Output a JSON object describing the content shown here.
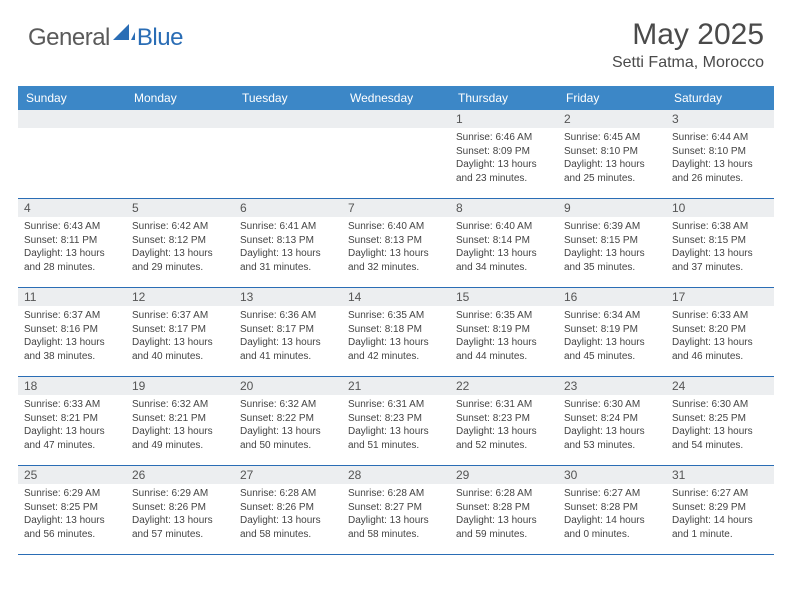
{
  "brand": {
    "part1": "General",
    "part2": "Blue"
  },
  "title": "May 2025",
  "location": "Setti Fatma, Morocco",
  "colors": {
    "header_bg": "#3c87c7",
    "week_border": "#2a6db5",
    "daynum_bg": "#eceef0",
    "brand_gray": "#5a5a5a",
    "brand_blue": "#2a6db5",
    "text": "#444444",
    "page_bg": "#ffffff"
  },
  "day_labels": [
    "Sunday",
    "Monday",
    "Tuesday",
    "Wednesday",
    "Thursday",
    "Friday",
    "Saturday"
  ],
  "weeks": [
    [
      {
        "n": "",
        "sunrise": "",
        "sunset": "",
        "daylight": ""
      },
      {
        "n": "",
        "sunrise": "",
        "sunset": "",
        "daylight": ""
      },
      {
        "n": "",
        "sunrise": "",
        "sunset": "",
        "daylight": ""
      },
      {
        "n": "",
        "sunrise": "",
        "sunset": "",
        "daylight": ""
      },
      {
        "n": "1",
        "sunrise": "Sunrise: 6:46 AM",
        "sunset": "Sunset: 8:09 PM",
        "daylight": "Daylight: 13 hours and 23 minutes."
      },
      {
        "n": "2",
        "sunrise": "Sunrise: 6:45 AM",
        "sunset": "Sunset: 8:10 PM",
        "daylight": "Daylight: 13 hours and 25 minutes."
      },
      {
        "n": "3",
        "sunrise": "Sunrise: 6:44 AM",
        "sunset": "Sunset: 8:10 PM",
        "daylight": "Daylight: 13 hours and 26 minutes."
      }
    ],
    [
      {
        "n": "4",
        "sunrise": "Sunrise: 6:43 AM",
        "sunset": "Sunset: 8:11 PM",
        "daylight": "Daylight: 13 hours and 28 minutes."
      },
      {
        "n": "5",
        "sunrise": "Sunrise: 6:42 AM",
        "sunset": "Sunset: 8:12 PM",
        "daylight": "Daylight: 13 hours and 29 minutes."
      },
      {
        "n": "6",
        "sunrise": "Sunrise: 6:41 AM",
        "sunset": "Sunset: 8:13 PM",
        "daylight": "Daylight: 13 hours and 31 minutes."
      },
      {
        "n": "7",
        "sunrise": "Sunrise: 6:40 AM",
        "sunset": "Sunset: 8:13 PM",
        "daylight": "Daylight: 13 hours and 32 minutes."
      },
      {
        "n": "8",
        "sunrise": "Sunrise: 6:40 AM",
        "sunset": "Sunset: 8:14 PM",
        "daylight": "Daylight: 13 hours and 34 minutes."
      },
      {
        "n": "9",
        "sunrise": "Sunrise: 6:39 AM",
        "sunset": "Sunset: 8:15 PM",
        "daylight": "Daylight: 13 hours and 35 minutes."
      },
      {
        "n": "10",
        "sunrise": "Sunrise: 6:38 AM",
        "sunset": "Sunset: 8:15 PM",
        "daylight": "Daylight: 13 hours and 37 minutes."
      }
    ],
    [
      {
        "n": "11",
        "sunrise": "Sunrise: 6:37 AM",
        "sunset": "Sunset: 8:16 PM",
        "daylight": "Daylight: 13 hours and 38 minutes."
      },
      {
        "n": "12",
        "sunrise": "Sunrise: 6:37 AM",
        "sunset": "Sunset: 8:17 PM",
        "daylight": "Daylight: 13 hours and 40 minutes."
      },
      {
        "n": "13",
        "sunrise": "Sunrise: 6:36 AM",
        "sunset": "Sunset: 8:17 PM",
        "daylight": "Daylight: 13 hours and 41 minutes."
      },
      {
        "n": "14",
        "sunrise": "Sunrise: 6:35 AM",
        "sunset": "Sunset: 8:18 PM",
        "daylight": "Daylight: 13 hours and 42 minutes."
      },
      {
        "n": "15",
        "sunrise": "Sunrise: 6:35 AM",
        "sunset": "Sunset: 8:19 PM",
        "daylight": "Daylight: 13 hours and 44 minutes."
      },
      {
        "n": "16",
        "sunrise": "Sunrise: 6:34 AM",
        "sunset": "Sunset: 8:19 PM",
        "daylight": "Daylight: 13 hours and 45 minutes."
      },
      {
        "n": "17",
        "sunrise": "Sunrise: 6:33 AM",
        "sunset": "Sunset: 8:20 PM",
        "daylight": "Daylight: 13 hours and 46 minutes."
      }
    ],
    [
      {
        "n": "18",
        "sunrise": "Sunrise: 6:33 AM",
        "sunset": "Sunset: 8:21 PM",
        "daylight": "Daylight: 13 hours and 47 minutes."
      },
      {
        "n": "19",
        "sunrise": "Sunrise: 6:32 AM",
        "sunset": "Sunset: 8:21 PM",
        "daylight": "Daylight: 13 hours and 49 minutes."
      },
      {
        "n": "20",
        "sunrise": "Sunrise: 6:32 AM",
        "sunset": "Sunset: 8:22 PM",
        "daylight": "Daylight: 13 hours and 50 minutes."
      },
      {
        "n": "21",
        "sunrise": "Sunrise: 6:31 AM",
        "sunset": "Sunset: 8:23 PM",
        "daylight": "Daylight: 13 hours and 51 minutes."
      },
      {
        "n": "22",
        "sunrise": "Sunrise: 6:31 AM",
        "sunset": "Sunset: 8:23 PM",
        "daylight": "Daylight: 13 hours and 52 minutes."
      },
      {
        "n": "23",
        "sunrise": "Sunrise: 6:30 AM",
        "sunset": "Sunset: 8:24 PM",
        "daylight": "Daylight: 13 hours and 53 minutes."
      },
      {
        "n": "24",
        "sunrise": "Sunrise: 6:30 AM",
        "sunset": "Sunset: 8:25 PM",
        "daylight": "Daylight: 13 hours and 54 minutes."
      }
    ],
    [
      {
        "n": "25",
        "sunrise": "Sunrise: 6:29 AM",
        "sunset": "Sunset: 8:25 PM",
        "daylight": "Daylight: 13 hours and 56 minutes."
      },
      {
        "n": "26",
        "sunrise": "Sunrise: 6:29 AM",
        "sunset": "Sunset: 8:26 PM",
        "daylight": "Daylight: 13 hours and 57 minutes."
      },
      {
        "n": "27",
        "sunrise": "Sunrise: 6:28 AM",
        "sunset": "Sunset: 8:26 PM",
        "daylight": "Daylight: 13 hours and 58 minutes."
      },
      {
        "n": "28",
        "sunrise": "Sunrise: 6:28 AM",
        "sunset": "Sunset: 8:27 PM",
        "daylight": "Daylight: 13 hours and 58 minutes."
      },
      {
        "n": "29",
        "sunrise": "Sunrise: 6:28 AM",
        "sunset": "Sunset: 8:28 PM",
        "daylight": "Daylight: 13 hours and 59 minutes."
      },
      {
        "n": "30",
        "sunrise": "Sunrise: 6:27 AM",
        "sunset": "Sunset: 8:28 PM",
        "daylight": "Daylight: 14 hours and 0 minutes."
      },
      {
        "n": "31",
        "sunrise": "Sunrise: 6:27 AM",
        "sunset": "Sunset: 8:29 PM",
        "daylight": "Daylight: 14 hours and 1 minute."
      }
    ]
  ]
}
